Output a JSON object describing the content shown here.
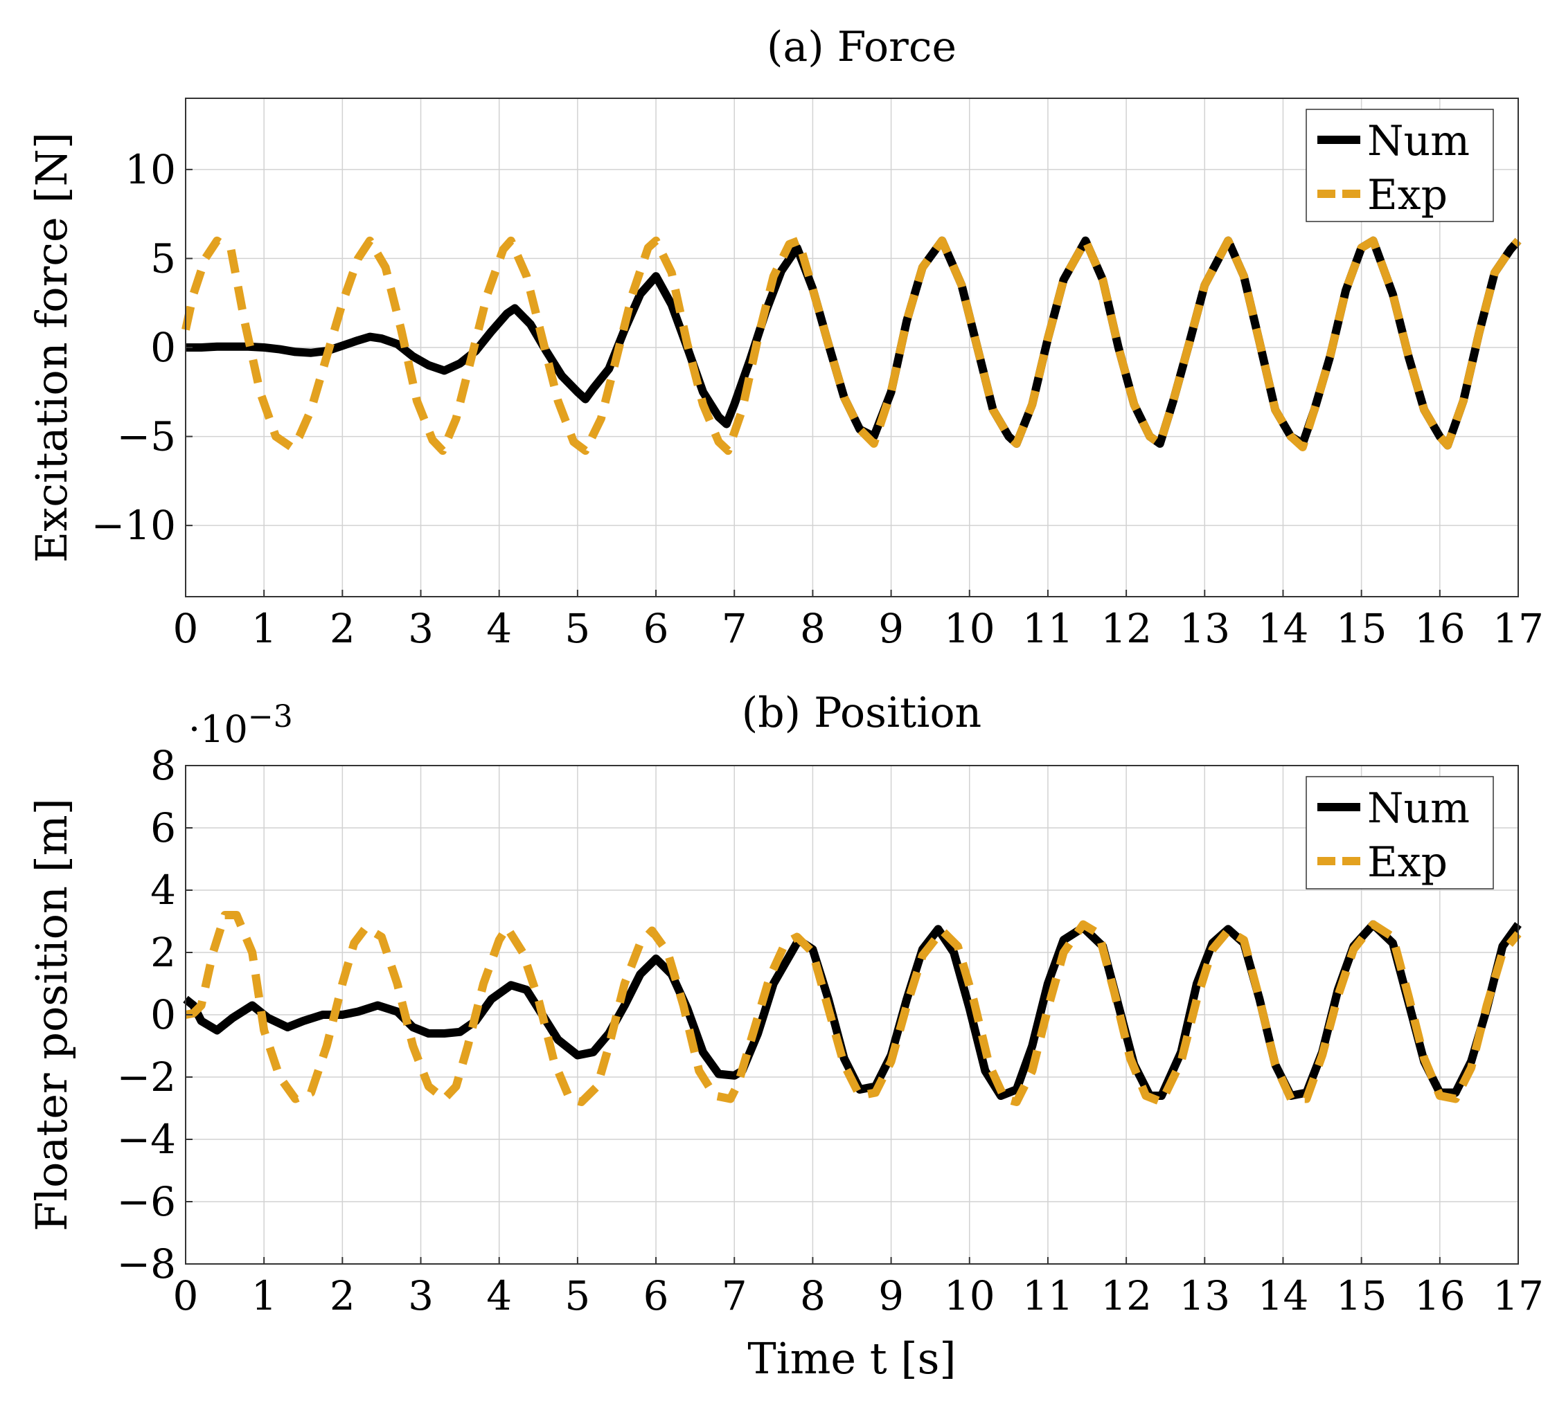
{
  "figure": {
    "xlabel": "Time t [s]",
    "colors": {
      "num": "#000000",
      "exp": "#e3a11f"
    }
  },
  "chart_data": [
    {
      "id": "force",
      "type": "line",
      "title": "(a) Force",
      "xlabel": "",
      "ylabel": "Excitation force [N]",
      "xlim": [
        0,
        17
      ],
      "ylim": [
        -14,
        14
      ],
      "xticks": [
        0,
        1,
        2,
        3,
        4,
        5,
        6,
        7,
        8,
        9,
        10,
        11,
        12,
        13,
        14,
        15,
        16,
        17
      ],
      "yticks": [
        -10,
        -5,
        0,
        5,
        10
      ],
      "ytick_labels": [
        "−10",
        "−5",
        "0",
        "5",
        "10"
      ],
      "grid": true,
      "legend": "top-right",
      "series": [
        {
          "name": "Num",
          "style": "solid",
          "x": [
            0,
            0.2,
            0.4,
            0.6,
            0.8,
            1.0,
            1.2,
            1.4,
            1.6,
            1.8,
            2.0,
            2.2,
            2.35,
            2.5,
            2.7,
            2.9,
            3.1,
            3.3,
            3.5,
            3.7,
            3.9,
            4.1,
            4.2,
            4.4,
            4.6,
            4.8,
            5.0,
            5.1,
            5.2,
            5.4,
            5.6,
            5.8,
            6.0,
            6.2,
            6.4,
            6.6,
            6.8,
            6.9,
            7.0,
            7.2,
            7.4,
            7.6,
            7.8,
            8.0,
            8.2,
            8.4,
            8.6,
            8.78,
            9.0,
            9.2,
            9.4,
            9.65,
            9.9,
            10.1,
            10.3,
            10.5,
            10.6,
            10.8,
            11.0,
            11.2,
            11.48,
            11.7,
            11.9,
            12.1,
            12.3,
            12.43,
            12.6,
            12.8,
            13.0,
            13.3,
            13.5,
            13.7,
            13.9,
            14.1,
            14.25,
            14.4,
            14.6,
            14.8,
            15.0,
            15.15,
            15.4,
            15.6,
            15.8,
            16.0,
            16.1,
            16.3,
            16.5,
            16.7,
            16.9,
            17.0
          ],
          "values": [
            0,
            0,
            0.05,
            0.05,
            0.05,
            0,
            -0.1,
            -0.25,
            -0.3,
            -0.2,
            0.1,
            0.4,
            0.6,
            0.5,
            0.2,
            -0.5,
            -1.0,
            -1.3,
            -0.9,
            -0.2,
            0.9,
            1.9,
            2.2,
            1.3,
            -0.2,
            -1.6,
            -2.5,
            -2.9,
            -2.3,
            -1.2,
            1.0,
            3.0,
            4.0,
            2.4,
            0,
            -2.5,
            -3.9,
            -4.3,
            -3.2,
            -0.7,
            2.0,
            4.3,
            5.6,
            3.3,
            0.2,
            -2.8,
            -4.6,
            -5.0,
            -2.5,
            1.5,
            4.5,
            6.0,
            3.5,
            0,
            -3.5,
            -5.0,
            -5.4,
            -3.2,
            0.5,
            3.8,
            6.0,
            3.8,
            0,
            -3.2,
            -5.0,
            -5.4,
            -3.0,
            0.2,
            3.5,
            6.0,
            4.0,
            0.3,
            -3.5,
            -5.0,
            -5.4,
            -3.5,
            -0.5,
            3.2,
            5.6,
            6.0,
            3.0,
            -0.5,
            -3.5,
            -5.0,
            -5.5,
            -3.0,
            0.8,
            4.2,
            5.5,
            6.0
          ]
        },
        {
          "name": "Exp",
          "style": "dashed",
          "x": [
            0,
            0.1,
            0.25,
            0.4,
            0.58,
            0.75,
            0.95,
            1.15,
            1.35,
            1.45,
            1.6,
            1.8,
            2.0,
            2.2,
            2.35,
            2.55,
            2.75,
            2.95,
            3.15,
            3.28,
            3.45,
            3.65,
            3.85,
            4.05,
            4.15,
            4.35,
            4.55,
            4.75,
            4.95,
            5.1,
            5.3,
            5.5,
            5.7,
            5.9,
            6.0,
            6.2,
            6.4,
            6.6,
            6.8,
            6.92,
            7.1,
            7.3,
            7.5,
            7.7,
            7.82,
            8.0,
            8.2,
            8.4,
            8.6,
            8.78,
            9.0,
            9.2,
            9.4,
            9.65,
            9.9,
            10.1,
            10.3,
            10.5,
            10.6,
            10.8,
            11.0,
            11.2,
            11.48,
            11.7,
            11.9,
            12.1,
            12.3,
            12.43,
            12.6,
            12.8,
            13.0,
            13.3,
            13.5,
            13.7,
            13.9,
            14.1,
            14.25,
            14.4,
            14.6,
            14.8,
            15.0,
            15.15,
            15.4,
            15.6,
            15.8,
            16.0,
            16.1,
            16.3,
            16.5,
            16.7,
            16.9,
            17.0
          ],
          "values": [
            1.0,
            3.0,
            5.0,
            6.0,
            5.5,
            1.5,
            -2.5,
            -5.0,
            -5.6,
            -5.0,
            -3.5,
            -0.5,
            2.5,
            5.0,
            6.0,
            4.5,
            1.0,
            -3.0,
            -5.2,
            -5.8,
            -4.0,
            -0.5,
            3.0,
            5.5,
            6.0,
            4.0,
            0.5,
            -3.0,
            -5.3,
            -5.8,
            -4.0,
            -0.5,
            3.0,
            5.6,
            6.0,
            4.2,
            0.2,
            -3.2,
            -5.3,
            -5.8,
            -3.5,
            0.5,
            4.0,
            5.8,
            6.0,
            3.3,
            0.2,
            -2.8,
            -4.6,
            -5.4,
            -2.5,
            1.5,
            4.5,
            6.0,
            3.5,
            0,
            -3.5,
            -5.0,
            -5.4,
            -3.2,
            0.5,
            3.8,
            6.0,
            3.8,
            0,
            -3.2,
            -5.0,
            -5.4,
            -3.0,
            0.2,
            3.5,
            6.0,
            4.0,
            0.3,
            -3.5,
            -5.0,
            -5.6,
            -3.5,
            -0.5,
            3.2,
            5.6,
            6.0,
            3.0,
            -0.5,
            -3.5,
            -5.0,
            -5.5,
            -3.0,
            0.8,
            4.2,
            5.5,
            6.0
          ]
        }
      ]
    },
    {
      "id": "position",
      "type": "line",
      "title": "(b) Position",
      "xlabel": "Time t [s]",
      "ylabel": "Floater position [m]",
      "y_exponent": "·10",
      "y_exponent_power": "−3",
      "xlim": [
        0,
        17
      ],
      "ylim": [
        -8,
        8
      ],
      "xticks": [
        0,
        1,
        2,
        3,
        4,
        5,
        6,
        7,
        8,
        9,
        10,
        11,
        12,
        13,
        14,
        15,
        16,
        17
      ],
      "yticks": [
        -8,
        -6,
        -4,
        -2,
        0,
        2,
        4,
        6,
        8
      ],
      "ytick_labels": [
        "−8",
        "−6",
        "−4",
        "−2",
        "0",
        "2",
        "4",
        "6",
        "8"
      ],
      "grid": true,
      "legend": "top-right",
      "series": [
        {
          "name": "Num",
          "style": "solid",
          "x": [
            0,
            0.1,
            0.2,
            0.4,
            0.6,
            0.85,
            1.05,
            1.3,
            1.5,
            1.75,
            2.0,
            2.2,
            2.45,
            2.7,
            2.9,
            3.1,
            3.3,
            3.5,
            3.7,
            3.9,
            4.15,
            4.35,
            4.55,
            4.75,
            5.0,
            5.2,
            5.4,
            5.6,
            5.8,
            6.0,
            6.2,
            6.4,
            6.6,
            6.8,
            7.0,
            7.1,
            7.3,
            7.5,
            7.82,
            8.0,
            8.2,
            8.4,
            8.6,
            8.8,
            9.0,
            9.2,
            9.4,
            9.6,
            9.8,
            10.0,
            10.2,
            10.4,
            10.6,
            10.8,
            11.0,
            11.2,
            11.45,
            11.7,
            11.9,
            12.1,
            12.3,
            12.45,
            12.7,
            12.9,
            13.1,
            13.3,
            13.5,
            13.7,
            13.9,
            14.1,
            14.3,
            14.5,
            14.7,
            14.9,
            15.15,
            15.4,
            15.6,
            15.8,
            16.0,
            16.2,
            16.4,
            16.6,
            16.8,
            17.0
          ],
          "values": [
            0.5,
            0.3,
            -0.2,
            -0.5,
            -0.1,
            0.3,
            -0.1,
            -0.4,
            -0.2,
            0,
            0,
            0.1,
            0.3,
            0.1,
            -0.4,
            -0.6,
            -0.6,
            -0.55,
            -0.2,
            0.5,
            0.95,
            0.8,
            0,
            -0.8,
            -1.3,
            -1.2,
            -0.6,
            0.3,
            1.3,
            1.8,
            1.3,
            0.2,
            -1.2,
            -1.9,
            -1.95,
            -1.8,
            -0.6,
            1.0,
            2.4,
            2.1,
            0.5,
            -1.4,
            -2.4,
            -2.3,
            -1.3,
            0.5,
            2.1,
            2.75,
            2.0,
            0.2,
            -1.8,
            -2.6,
            -2.4,
            -1.0,
            1.0,
            2.4,
            2.8,
            2.2,
            0.3,
            -1.6,
            -2.6,
            -2.6,
            -1.2,
            1.0,
            2.3,
            2.75,
            2.3,
            0.5,
            -1.6,
            -2.6,
            -2.5,
            -1.2,
            0.8,
            2.2,
            2.9,
            2.3,
            0.4,
            -1.5,
            -2.5,
            -2.5,
            -1.5,
            0.2,
            2.2,
            2.9
          ]
        },
        {
          "name": "Exp",
          "style": "dashed",
          "x": [
            0,
            0.1,
            0.2,
            0.35,
            0.5,
            0.65,
            0.85,
            1.0,
            1.2,
            1.4,
            1.6,
            1.8,
            2.0,
            2.15,
            2.3,
            2.5,
            2.7,
            2.9,
            3.1,
            3.3,
            3.45,
            3.6,
            3.8,
            4.0,
            4.1,
            4.3,
            4.5,
            4.7,
            4.9,
            5.05,
            5.25,
            5.4,
            5.6,
            5.8,
            5.95,
            6.15,
            6.35,
            6.55,
            6.75,
            6.95,
            7.05,
            7.25,
            7.45,
            7.65,
            7.8,
            8.0,
            8.2,
            8.4,
            8.6,
            8.8,
            9.0,
            9.2,
            9.4,
            9.65,
            9.85,
            10.05,
            10.25,
            10.45,
            10.6,
            10.8,
            11.0,
            11.2,
            11.45,
            11.65,
            11.85,
            12.05,
            12.25,
            12.45,
            12.7,
            12.9,
            13.1,
            13.3,
            13.5,
            13.7,
            13.9,
            14.1,
            14.3,
            14.5,
            14.7,
            14.9,
            15.15,
            15.4,
            15.6,
            15.8,
            16.0,
            16.2,
            16.4,
            16.6,
            16.8,
            17.0
          ],
          "values": [
            0,
            0.05,
            0.3,
            2.0,
            3.2,
            3.2,
            2.0,
            -0.5,
            -2.0,
            -2.7,
            -2.5,
            -1.0,
            1.0,
            2.3,
            2.8,
            2.5,
            1.0,
            -1.0,
            -2.3,
            -2.7,
            -2.3,
            -1.0,
            1.0,
            2.4,
            2.8,
            2.0,
            0.5,
            -1.5,
            -2.7,
            -2.8,
            -2.3,
            -1.0,
            1.0,
            2.3,
            2.7,
            2.0,
            0.3,
            -1.8,
            -2.6,
            -2.7,
            -2.2,
            -0.5,
            1.2,
            2.3,
            2.5,
            2.0,
            0.2,
            -1.6,
            -2.6,
            -2.5,
            -1.5,
            0.3,
            1.9,
            2.7,
            2.2,
            0.5,
            -1.6,
            -2.7,
            -2.8,
            -1.8,
            0.2,
            2.0,
            2.9,
            2.6,
            0.7,
            -1.4,
            -2.6,
            -2.8,
            -1.5,
            0.5,
            2.1,
            2.7,
            2.4,
            0.5,
            -1.6,
            -2.7,
            -2.7,
            -1.3,
            0.6,
            2.1,
            2.9,
            2.5,
            0.6,
            -1.4,
            -2.6,
            -2.7,
            -1.7,
            0.3,
            2.0,
            2.6
          ]
        }
      ]
    }
  ]
}
